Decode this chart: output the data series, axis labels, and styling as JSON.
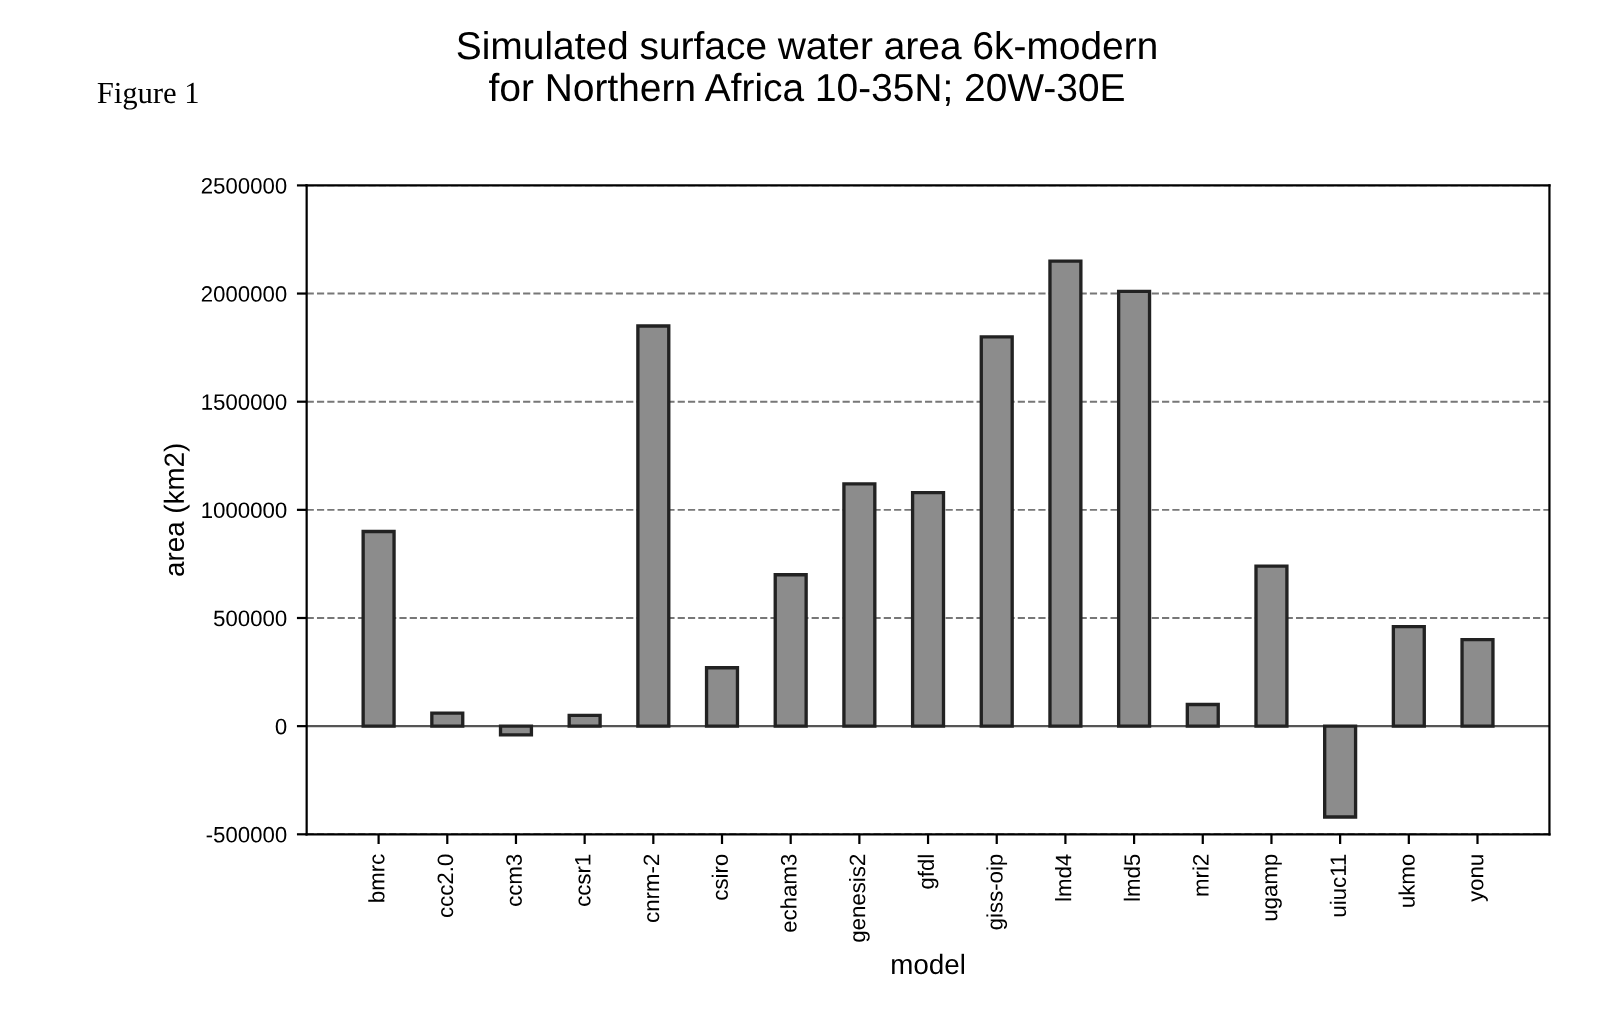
{
  "chart_data": {
    "type": "bar",
    "title": "Simulated surface water area 6k-modern\nfor Northern Africa 10-35N; 20W-30E",
    "annotations": [
      "Figure 1"
    ],
    "xlabel": "model",
    "ylabel": "area (km2)",
    "categories": [
      "bmrc",
      "ccc2.0",
      "ccm3",
      "ccsr1",
      "cnrm-2",
      "csiro",
      "echam3",
      "genesis2",
      "gfdl",
      "giss-oip",
      "lmd4",
      "lmd5",
      "mri2",
      "ugamp",
      "uiuc11",
      "ukmo",
      "yonu"
    ],
    "values": [
      900000,
      60000,
      -40000,
      50000,
      1850000,
      270000,
      700000,
      1120000,
      1080000,
      1800000,
      2150000,
      2010000,
      100000,
      740000,
      -420000,
      460000,
      400000
    ],
    "color": "#8c8c8c",
    "ylim": [
      -500000,
      2500000
    ],
    "yticks": [
      -500000,
      0,
      500000,
      1000000,
      1500000,
      2000000,
      2500000
    ],
    "grid": "y"
  }
}
